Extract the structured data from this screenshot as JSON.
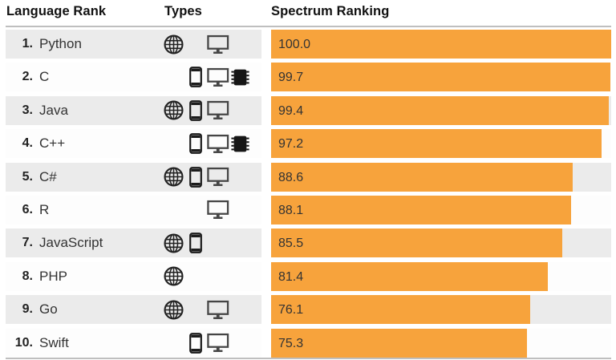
{
  "header": {
    "language_rank": "Language Rank",
    "types": "Types",
    "spectrum_ranking": "Spectrum Ranking"
  },
  "type_slot_order": [
    "web",
    "mobile",
    "desktop",
    "embedded"
  ],
  "icon_names": {
    "web": "globe-icon",
    "mobile": "mobile-phone-icon",
    "desktop": "desktop-monitor-icon",
    "embedded": "embedded-chip-icon"
  },
  "rows": [
    {
      "rank": "1.",
      "language": "Python",
      "types": [
        "web",
        "desktop"
      ],
      "score": "100.0",
      "value": 100.0
    },
    {
      "rank": "2.",
      "language": "C",
      "types": [
        "mobile",
        "desktop",
        "embedded"
      ],
      "score": "99.7",
      "value": 99.7
    },
    {
      "rank": "3.",
      "language": "Java",
      "types": [
        "web",
        "mobile",
        "desktop"
      ],
      "score": "99.4",
      "value": 99.4
    },
    {
      "rank": "4.",
      "language": "C++",
      "types": [
        "mobile",
        "desktop",
        "embedded"
      ],
      "score": "97.2",
      "value": 97.2
    },
    {
      "rank": "5.",
      "language": "C#",
      "types": [
        "web",
        "mobile",
        "desktop"
      ],
      "score": "88.6",
      "value": 88.6
    },
    {
      "rank": "6.",
      "language": "R",
      "types": [
        "desktop"
      ],
      "score": "88.1",
      "value": 88.1
    },
    {
      "rank": "7.",
      "language": "JavaScript",
      "types": [
        "web",
        "mobile"
      ],
      "score": "85.5",
      "value": 85.5
    },
    {
      "rank": "8.",
      "language": "PHP",
      "types": [
        "web"
      ],
      "score": "81.4",
      "value": 81.4
    },
    {
      "rank": "9.",
      "language": "Go",
      "types": [
        "web",
        "desktop"
      ],
      "score": "76.1",
      "value": 76.1
    },
    {
      "rank": "10.",
      "language": "Swift",
      "types": [
        "mobile",
        "desktop"
      ],
      "score": "75.3",
      "value": 75.3
    }
  ],
  "colors": {
    "bar": "#f7a33c",
    "row_alt_bg": "#ebebeb",
    "row_bg": "#fdfdfd",
    "divider": "#bfbfbf",
    "text": "#333333"
  },
  "chart_data": {
    "type": "bar",
    "orientation": "horizontal",
    "title": "Spectrum Ranking",
    "categories": [
      "Python",
      "C",
      "Java",
      "C++",
      "C#",
      "R",
      "JavaScript",
      "PHP",
      "Go",
      "Swift"
    ],
    "values": [
      100.0,
      99.7,
      99.4,
      97.2,
      88.6,
      88.1,
      85.5,
      81.4,
      76.1,
      75.3
    ],
    "ranks": [
      1,
      2,
      3,
      4,
      5,
      6,
      7,
      8,
      9,
      10
    ],
    "series_types": [
      [
        "web",
        "desktop"
      ],
      [
        "mobile",
        "desktop",
        "embedded"
      ],
      [
        "web",
        "mobile",
        "desktop"
      ],
      [
        "mobile",
        "desktop",
        "embedded"
      ],
      [
        "web",
        "mobile",
        "desktop"
      ],
      [
        "desktop"
      ],
      [
        "web",
        "mobile"
      ],
      [
        "web"
      ],
      [
        "web",
        "desktop"
      ],
      [
        "mobile",
        "desktop"
      ]
    ],
    "xlim": [
      0,
      100
    ],
    "value_labels_shown": true,
    "bar_color": "#f7a33c",
    "grid": false,
    "legend": "none"
  }
}
